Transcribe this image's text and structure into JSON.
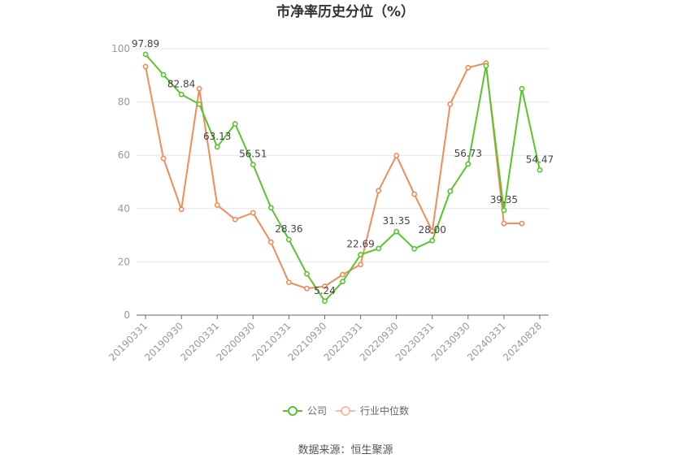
{
  "chart_data": {
    "type": "line",
    "title": "市净率历史分位（%）",
    "xlabel": "",
    "ylabel": "",
    "ylim": [
      0,
      100
    ],
    "yticks": [
      0,
      20,
      40,
      60,
      80,
      100
    ],
    "x": [
      "20190331",
      "20190630",
      "20190930",
      "20191231",
      "20200331",
      "20200630",
      "20200930",
      "20201231",
      "20210331",
      "20210630",
      "20210930",
      "20211231",
      "20220331",
      "20220630",
      "20220930",
      "20221231",
      "20230331",
      "20230630",
      "20230930",
      "20231231",
      "20240331",
      "20240630",
      "20240828"
    ],
    "xtick_labels": [
      "20190331",
      "20190930",
      "20200331",
      "20200930",
      "20210331",
      "20210930",
      "20220331",
      "20220930",
      "20230331",
      "20230930",
      "20240331",
      "20240828"
    ],
    "series": [
      {
        "name": "公司",
        "color": "#5ac42c",
        "values": [
          97.89,
          90.2,
          82.84,
          79.2,
          63.13,
          71.8,
          56.51,
          40.3,
          28.36,
          15.5,
          5.24,
          12.6,
          22.69,
          25.0,
          31.35,
          24.9,
          28.0,
          46.5,
          56.73,
          93.6,
          39.35,
          85.0,
          54.47
        ],
        "labels": {
          "0": "97.89",
          "2": "82.84",
          "4": "63.13",
          "6": "56.51",
          "8": "28.36",
          "10": "5.24",
          "12": "22.69",
          "14": "31.35",
          "16": "28.00",
          "18": "56.73",
          "20": "39.35",
          "22": "54.47"
        }
      },
      {
        "name": "行业中位数",
        "color": "#f08c5a",
        "values": [
          93.3,
          58.8,
          39.7,
          85.0,
          41.3,
          35.9,
          38.4,
          27.4,
          12.3,
          10.0,
          10.8,
          15.2,
          19.0,
          46.7,
          59.9,
          45.4,
          31.5,
          79.2,
          92.9,
          94.6,
          34.4,
          34.4,
          null
        ]
      }
    ],
    "legend": {
      "position": "bottom"
    },
    "grid": true
  },
  "source_text": "数据来源：恒生聚源"
}
